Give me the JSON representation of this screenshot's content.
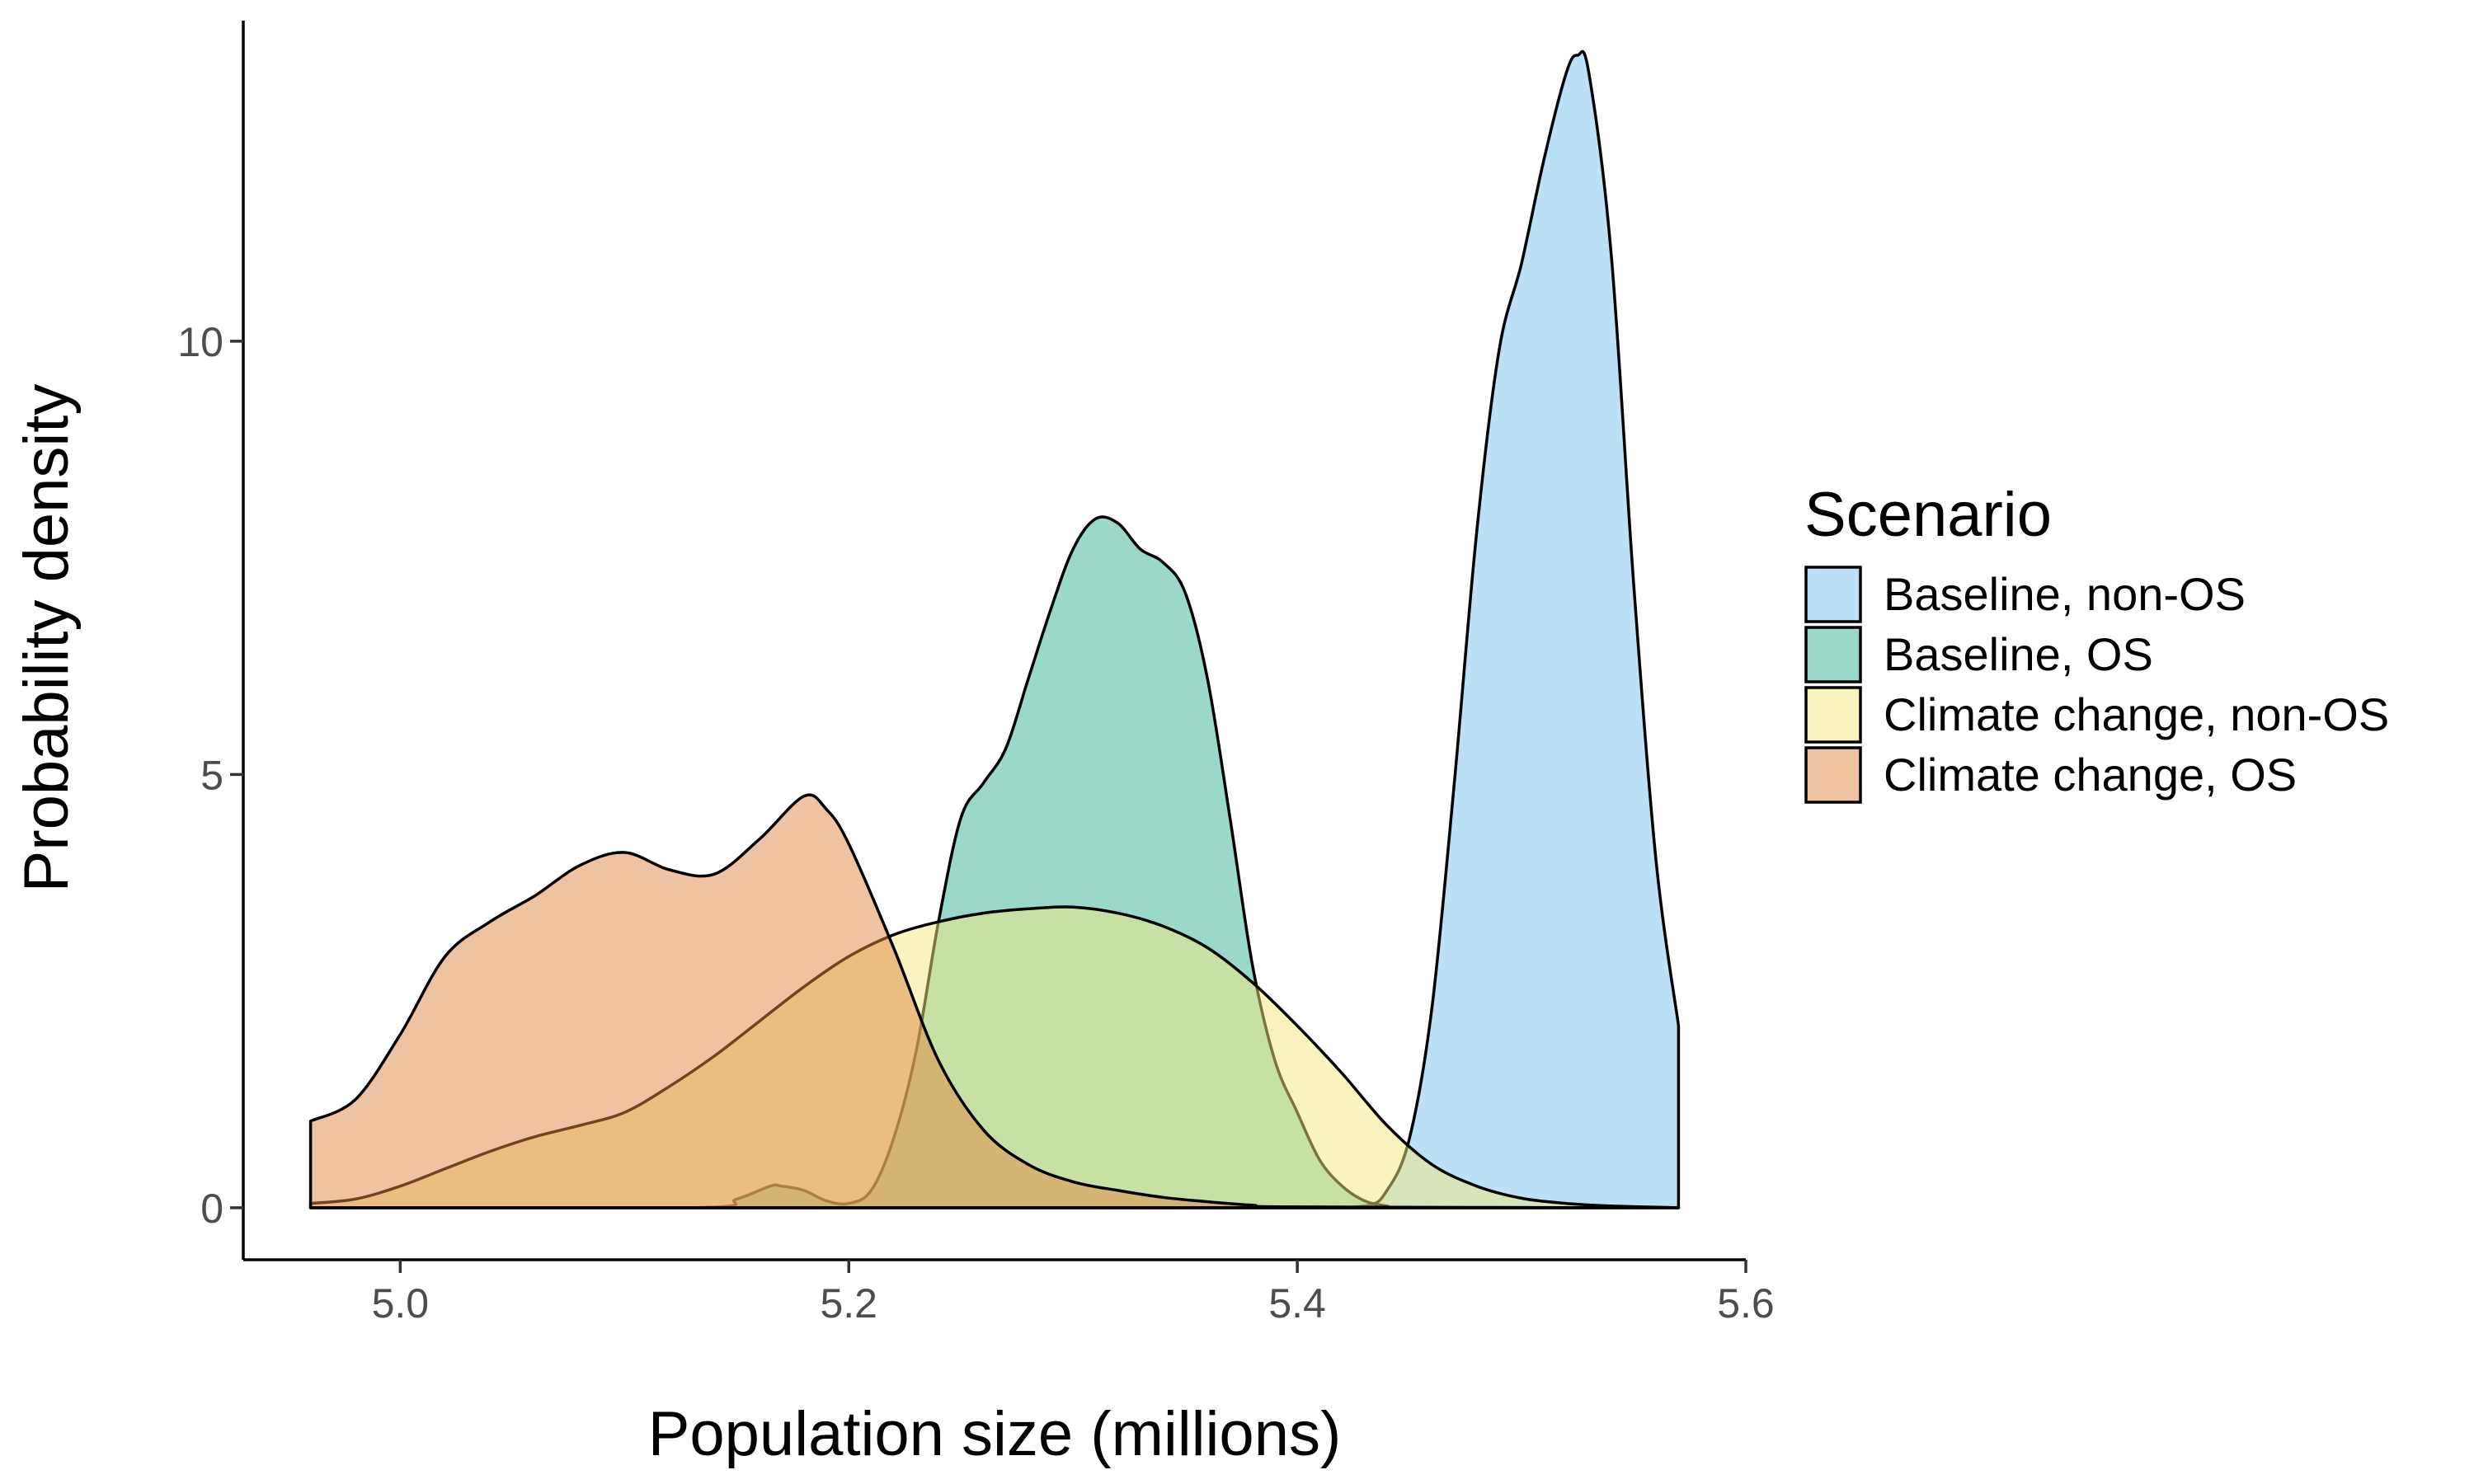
{
  "chart_data": {
    "type": "area",
    "xlabel": "Population size (millions)",
    "ylabel": "Probability density",
    "xlim": [
      4.93,
      5.6
    ],
    "ylim": [
      -0.6,
      13.7
    ],
    "x_ticks": [
      5.0,
      5.2,
      5.4,
      5.6
    ],
    "x_tick_labels": [
      "5.0",
      "5.2",
      "5.4",
      "5.6"
    ],
    "y_ticks": [
      0,
      5,
      10
    ],
    "y_tick_labels": [
      "0",
      "5",
      "10"
    ],
    "grid": false,
    "legend": {
      "title": "Scenario",
      "placement": "right"
    },
    "fill_opacity": 0.5,
    "series": [
      {
        "name": "Baseline, non-OS",
        "color": "#7AC4F0",
        "x": [
          4.96,
          5.3,
          5.4,
          5.43,
          5.44,
          5.45,
          5.46,
          5.47,
          5.48,
          5.49,
          5.5,
          5.51,
          5.52,
          5.525,
          5.53,
          5.54,
          5.55,
          5.56,
          5.57
        ],
        "y": [
          0,
          0,
          0,
          0.02,
          0.2,
          0.8,
          2.3,
          4.9,
          7.8,
          9.9,
          10.9,
          12.1,
          13.1,
          13.3,
          13.1,
          11.0,
          7.2,
          4.0,
          2.1
        ]
      },
      {
        "name": "Baseline, OS",
        "color": "#35B195",
        "x": [
          4.96,
          5.13,
          5.15,
          5.165,
          5.17,
          5.18,
          5.19,
          5.2,
          5.21,
          5.22,
          5.23,
          5.24,
          5.25,
          5.26,
          5.27,
          5.28,
          5.29,
          5.3,
          5.31,
          5.32,
          5.33,
          5.34,
          5.35,
          5.36,
          5.37,
          5.38,
          5.39,
          5.4,
          5.41,
          5.42,
          5.43,
          5.44,
          5.45,
          5.57
        ],
        "y": [
          0,
          0,
          0.1,
          0.25,
          0.25,
          0.2,
          0.08,
          0.05,
          0.2,
          0.8,
          1.8,
          3.3,
          4.5,
          4.9,
          5.3,
          6.1,
          6.9,
          7.6,
          7.95,
          7.9,
          7.6,
          7.45,
          7.1,
          6.1,
          4.5,
          2.8,
          1.7,
          1.1,
          0.55,
          0.25,
          0.08,
          0.02,
          0,
          0
        ]
      },
      {
        "name": "Climate change, non-OS",
        "color": "#F3E87B",
        "x": [
          4.96,
          4.98,
          5.0,
          5.02,
          5.04,
          5.06,
          5.08,
          5.1,
          5.12,
          5.14,
          5.16,
          5.18,
          5.2,
          5.22,
          5.24,
          5.26,
          5.28,
          5.3,
          5.32,
          5.34,
          5.36,
          5.38,
          5.4,
          5.42,
          5.44,
          5.46,
          5.48,
          5.5,
          5.52,
          5.54,
          5.57
        ],
        "y": [
          0.05,
          0.1,
          0.25,
          0.45,
          0.65,
          0.82,
          0.95,
          1.1,
          1.4,
          1.75,
          2.15,
          2.55,
          2.9,
          3.15,
          3.3,
          3.4,
          3.45,
          3.47,
          3.4,
          3.25,
          3.0,
          2.6,
          2.1,
          1.55,
          0.95,
          0.5,
          0.25,
          0.11,
          0.05,
          0.02,
          0
        ]
      },
      {
        "name": "Climate change, OS",
        "color": "#E08844",
        "x": [
          4.96,
          4.98,
          5.0,
          5.02,
          5.04,
          5.06,
          5.08,
          5.1,
          5.12,
          5.14,
          5.16,
          5.18,
          5.19,
          5.2,
          5.22,
          5.24,
          5.26,
          5.28,
          5.3,
          5.32,
          5.34,
          5.36,
          5.38,
          5.4,
          5.57
        ],
        "y": [
          1.0,
          1.25,
          2.0,
          2.9,
          3.3,
          3.6,
          3.95,
          4.1,
          3.9,
          3.85,
          4.25,
          4.75,
          4.6,
          4.2,
          3.0,
          1.7,
          0.9,
          0.5,
          0.3,
          0.2,
          0.12,
          0.07,
          0.03,
          0.01,
          0
        ]
      }
    ]
  }
}
